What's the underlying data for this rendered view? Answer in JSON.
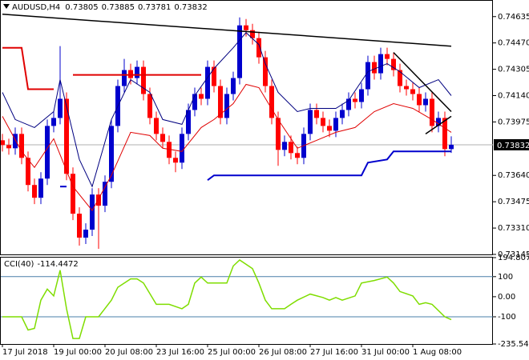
{
  "chart_data": {
    "type": "candlestick",
    "title": "AUDUSD,H4",
    "up_color": "#0000cd",
    "down_color": "#ff0000",
    "ylim": [
      0.73145,
      0.74734
    ],
    "yticks": [
      0.74635,
      {
        "value": 0.7447,
        "label": "0.74470"
      },
      0.74305,
      {
        "value": 0.7414,
        "label": "0.74140"
      },
      0.73975,
      {
        "value": 0.7364,
        "label": "0.73640"
      },
      0.73475,
      {
        "value": 0.7331,
        "label": "0.73310"
      },
      0.73145
    ],
    "xticks": [
      {
        "value": 0,
        "label": "17 Jul 2018"
      },
      {
        "value": 8,
        "label": "19 Jul 00:00"
      },
      {
        "value": 16,
        "label": "20 Jul 08:00"
      },
      {
        "value": 24,
        "label": "23 Jul 16:00"
      },
      {
        "value": 32,
        "label": "25 Jul 00:00"
      },
      {
        "value": 40,
        "label": "26 Jul 08:00"
      },
      {
        "value": 48,
        "label": "27 Jul 16:00"
      },
      {
        "value": 56,
        "label": "31 Jul 00:00"
      },
      {
        "value": 64,
        "label": "1 Aug 08:00"
      }
    ],
    "open": [
      0.7386,
      0.7383,
      0.7381,
      0.739,
      0.7375,
      0.7358,
      0.735,
      0.7362,
      0.7395,
      0.74,
      0.7412,
      0.7365,
      0.734,
      0.7325,
      0.733,
      0.7352,
      0.7345,
      0.736,
      0.7395,
      0.742,
      0.743,
      0.7425,
      0.7432,
      0.7415,
      0.74,
      0.739,
      0.7385,
      0.7375,
      0.7372,
      0.739,
      0.7405,
      0.7415,
      0.7412,
      0.7432,
      0.742,
      0.74,
      0.7415,
      0.7425,
      0.7458,
      0.7455,
      0.745,
      0.7438,
      0.742,
      0.74,
      0.738,
      0.7385,
      0.7378,
      0.7375,
      0.739,
      0.7405,
      0.74,
      0.7395,
      0.7392,
      0.74,
      0.7405,
      0.7412,
      0.741,
      0.7418,
      0.7435,
      0.7428,
      0.744,
      0.7437,
      0.743,
      0.742,
      0.7418,
      0.7415,
      0.7408,
      0.7412,
      0.7395,
      0.74,
      0.73805
    ],
    "high": [
      0.739,
      0.7387,
      0.7394,
      0.7394,
      0.7379,
      0.7362,
      0.7366,
      0.7399,
      0.7404,
      0.7445,
      0.7416,
      0.7369,
      0.7344,
      0.7334,
      0.7356,
      0.7356,
      0.7364,
      0.7399,
      0.7424,
      0.7437,
      0.7434,
      0.7436,
      0.7436,
      0.7419,
      0.7404,
      0.7394,
      0.7389,
      0.7379,
      0.7394,
      0.7409,
      0.7419,
      0.7419,
      0.7436,
      0.7436,
      0.7424,
      0.7419,
      0.7429,
      0.7463,
      0.7462,
      0.7459,
      0.7454,
      0.7442,
      0.7424,
      0.7404,
      0.7389,
      0.7389,
      0.7382,
      0.7394,
      0.7409,
      0.7409,
      0.7404,
      0.7399,
      0.7404,
      0.7409,
      0.7416,
      0.7416,
      0.7422,
      0.7439,
      0.7439,
      0.7444,
      0.7444,
      0.7441,
      0.7434,
      0.7424,
      0.7422,
      0.7419,
      0.7416,
      0.7416,
      0.7404,
      0.7404,
      0.73885
    ],
    "low": [
      0.7379,
      0.7377,
      0.7377,
      0.7371,
      0.7354,
      0.7346,
      0.7346,
      0.7358,
      0.7391,
      0.7396,
      0.7361,
      0.7336,
      0.732,
      0.7321,
      0.7326,
      0.7318,
      0.7341,
      0.7356,
      0.7391,
      0.7416,
      0.7421,
      0.7421,
      0.7411,
      0.7396,
      0.7386,
      0.7381,
      0.7371,
      0.7366,
      0.7368,
      0.7386,
      0.7401,
      0.7408,
      0.7408,
      0.7416,
      0.7396,
      0.7396,
      0.7411,
      0.7421,
      0.7451,
      0.7446,
      0.7434,
      0.7416,
      0.7396,
      0.737,
      0.7376,
      0.7374,
      0.7371,
      0.7371,
      0.7386,
      0.7396,
      0.7391,
      0.7388,
      0.7388,
      0.7396,
      0.7401,
      0.7406,
      0.7406,
      0.7414,
      0.7424,
      0.7424,
      0.7433,
      0.7426,
      0.7416,
      0.7414,
      0.7411,
      0.7404,
      0.7404,
      0.7391,
      0.7391,
      0.7376,
      0.73781
    ],
    "close": [
      0.7383,
      0.7381,
      0.739,
      0.7375,
      0.7358,
      0.735,
      0.7362,
      0.7395,
      0.74,
      0.7412,
      0.7365,
      0.734,
      0.7325,
      0.733,
      0.7352,
      0.7345,
      0.736,
      0.7395,
      0.742,
      0.743,
      0.7425,
      0.7432,
      0.7415,
      0.74,
      0.739,
      0.7385,
      0.7375,
      0.7372,
      0.739,
      0.7405,
      0.7415,
      0.7412,
      0.7432,
      0.742,
      0.74,
      0.7415,
      0.7425,
      0.7458,
      0.7455,
      0.745,
      0.7438,
      0.742,
      0.74,
      0.738,
      0.7385,
      0.7378,
      0.7375,
      0.739,
      0.7405,
      0.74,
      0.7395,
      0.7392,
      0.74,
      0.7405,
      0.7412,
      0.741,
      0.7418,
      0.7435,
      0.7428,
      0.744,
      0.7437,
      0.743,
      0.742,
      0.7418,
      0.7415,
      0.7408,
      0.7412,
      0.7395,
      0.74,
      0.73805,
      0.73832
    ],
    "lines": [
      {
        "color": "#000080",
        "width": 1,
        "x": [
          0,
          2,
          5,
          8,
          9,
          12,
          14,
          17,
          20,
          23,
          25,
          28,
          30,
          33,
          36,
          38,
          40,
          41,
          43,
          46,
          48,
          52,
          54,
          57,
          60,
          62,
          65,
          68,
          70
        ],
        "y": [
          0.7416,
          0.7399,
          0.7394,
          0.7404,
          0.7424,
          0.7374,
          0.7357,
          0.7399,
          0.7424,
          0.7416,
          0.7399,
          0.7396,
          0.7414,
          0.7431,
          0.7444,
          0.74535,
          0.7446,
          0.7434,
          0.7416,
          0.7404,
          0.7406,
          0.7406,
          0.7411,
          0.7429,
          0.7434,
          0.7429,
          0.7419,
          0.7424,
          0.7414
        ]
      },
      {
        "color": "#e00000",
        "width": 1,
        "x": [
          0,
          3,
          5,
          8,
          11,
          14,
          17,
          20,
          23,
          25,
          28,
          31,
          33,
          36,
          38,
          40,
          43,
          46,
          49,
          52,
          55,
          58,
          61,
          64,
          67,
          70
        ],
        "y": [
          0.7401,
          0.7379,
          0.7369,
          0.7387,
          0.7357,
          0.7342,
          0.7364,
          0.7391,
          0.7389,
          0.7381,
          0.7379,
          0.7394,
          0.7399,
          0.7409,
          0.7421,
          0.7419,
          0.7399,
          0.7381,
          0.7386,
          0.7391,
          0.7394,
          0.7404,
          0.7409,
          0.7406,
          0.7399,
          0.7391
        ]
      },
      {
        "color": "#e00000",
        "width": 2,
        "x": [
          0,
          3,
          4,
          8
        ],
        "y": [
          0.7444,
          0.7444,
          0.7418,
          0.7418
        ]
      },
      {
        "color": "#e00000",
        "width": 2,
        "x": [
          11,
          31
        ],
        "y": [
          0.7427,
          0.7427
        ]
      },
      {
        "color": "#0000cd",
        "width": 2,
        "x": [
          9,
          10
        ],
        "y": [
          0.7357,
          0.7357
        ]
      },
      {
        "color": "#0000cd",
        "width": 2,
        "x": [
          32,
          33,
          56,
          57,
          60,
          61,
          70
        ],
        "y": [
          0.7361,
          0.7364,
          0.7364,
          0.7372,
          0.7374,
          0.7379,
          0.7379
        ]
      },
      {
        "color": "#000000",
        "width": 1.5,
        "x": [
          0,
          70
        ],
        "y": [
          0.7465,
          0.7445
        ]
      },
      {
        "color": "#000000",
        "width": 1.5,
        "x": [
          61,
          70
        ],
        "y": [
          0.7441,
          0.7404
        ]
      },
      {
        "color": "#000000",
        "width": 1.5,
        "x": [
          66,
          70
        ],
        "y": [
          0.739,
          0.7401
        ]
      }
    ],
    "cci": {
      "title": "CCI(40)",
      "color": "#7fdd00",
      "ylim": [
        -235.5472,
        194.8079
      ],
      "yticks": [
        194.8079,
        100,
        {
          "value": 0,
          "label": "0.00"
        },
        -100,
        -235.5472
      ],
      "levels": [
        100,
        -100
      ],
      "x": [
        0,
        3,
        4,
        5,
        6,
        7,
        8,
        9,
        10,
        11,
        12,
        13,
        15,
        17,
        18,
        20,
        21,
        22,
        24,
        26,
        28,
        29,
        30,
        31,
        32,
        35,
        36,
        37,
        39,
        40,
        41,
        42,
        44,
        45,
        46,
        48,
        50,
        51,
        52,
        53,
        55,
        56,
        58,
        60,
        61,
        62,
        64,
        65,
        66,
        67,
        69,
        70
      ],
      "y": [
        -100,
        -100,
        -166,
        -158,
        -17,
        38,
        4,
        132,
        -60,
        -208,
        -208,
        -100,
        -100,
        -17,
        47,
        89,
        89,
        68,
        -38,
        -38,
        -60,
        -38,
        68,
        98,
        68,
        68,
        153,
        183,
        140,
        68,
        -17,
        -60,
        -60,
        -38,
        -17,
        13,
        -4,
        -17,
        -4,
        -17,
        4,
        68,
        81,
        98,
        68,
        26,
        4,
        -38,
        -30,
        -38,
        -100,
        -114.4472
      ]
    }
  }
}
